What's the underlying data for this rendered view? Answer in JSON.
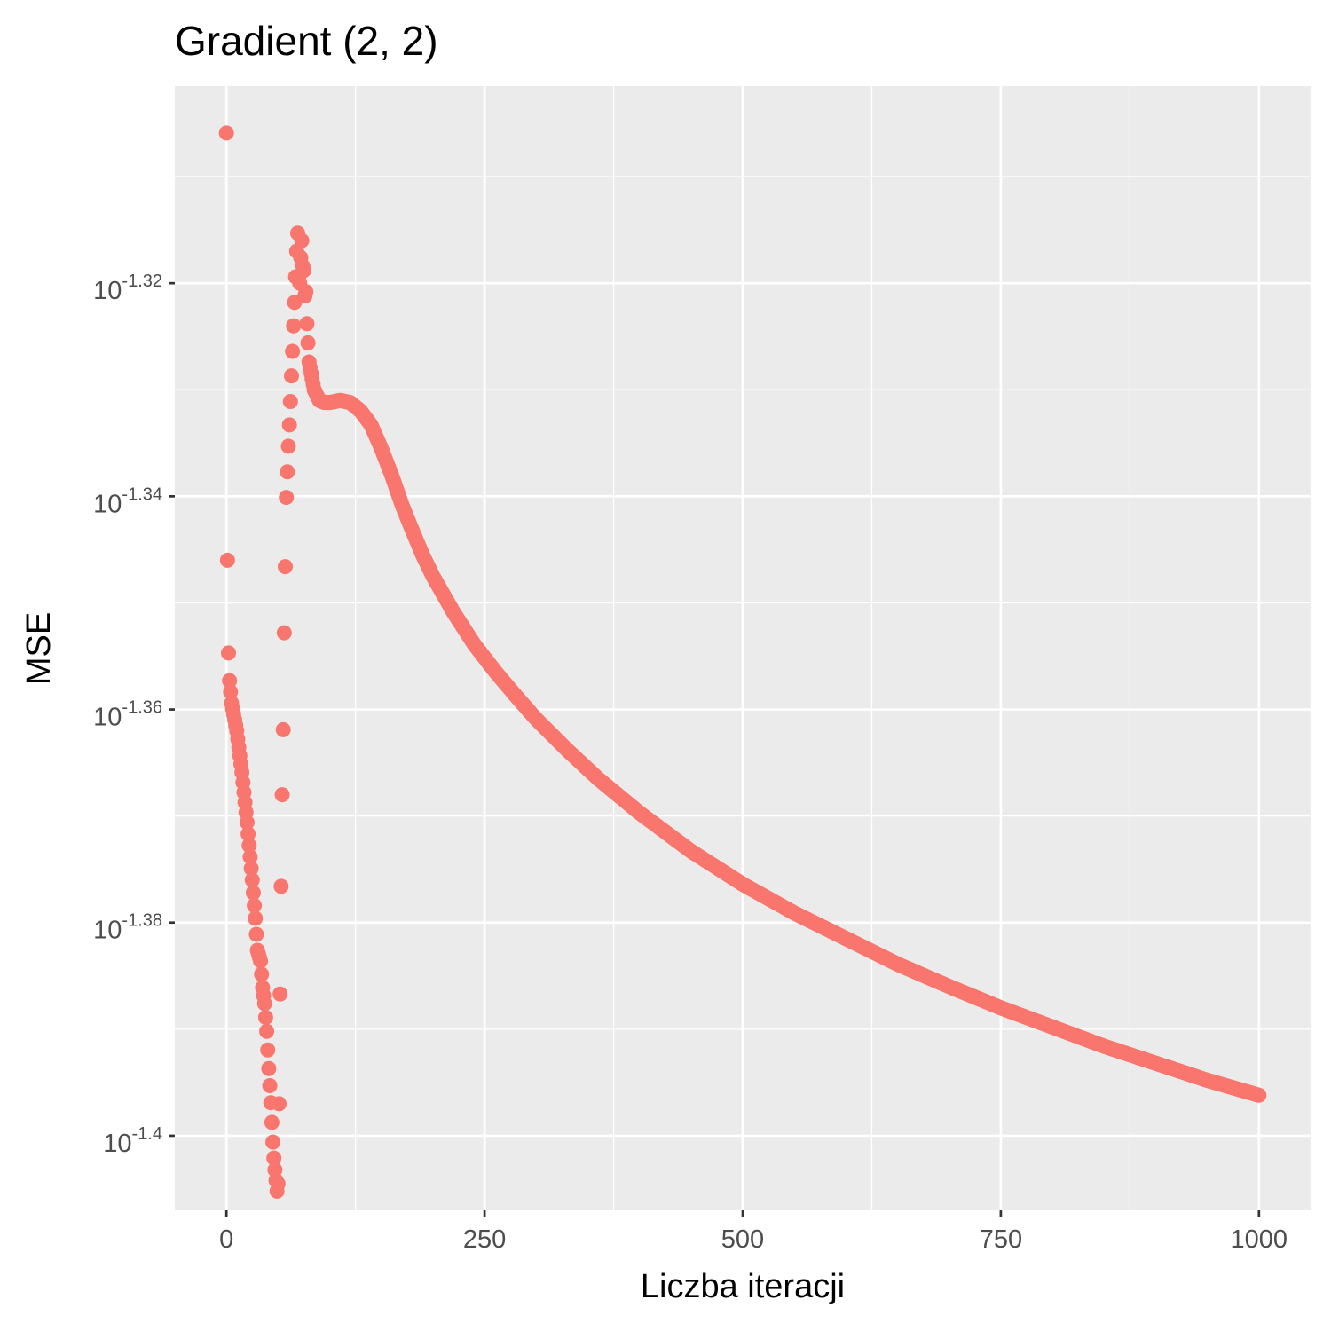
{
  "chart_data": {
    "type": "scatter",
    "title": "Gradient (2, 2)",
    "xlabel": "Liczba iteracji",
    "ylabel": "MSE",
    "xlim": [
      -50,
      1050
    ],
    "ylim_log10": [
      -1.407,
      -1.3015
    ],
    "y_scale": "log10",
    "x_ticks": [
      0,
      250,
      500,
      750,
      1000
    ],
    "x_tick_labels": [
      "0",
      "250",
      "500",
      "750",
      "1000"
    ],
    "y_ticks_log10": [
      -1.32,
      -1.34,
      -1.36,
      -1.38,
      -1.4
    ],
    "y_tick_labels": [
      {
        "base": "10",
        "exponent": "-1.32"
      },
      {
        "base": "10",
        "exponent": "-1.34"
      },
      {
        "base": "10",
        "exponent": "-1.36"
      },
      {
        "base": "10",
        "exponent": "-1.38"
      },
      {
        "base": "10",
        "exponent": "-1.4"
      }
    ],
    "grid": true,
    "legend": "none",
    "point_color": "#F8766D",
    "panel_color": "#EBEBEB",
    "series": [
      {
        "x": [
          0,
          1,
          2,
          3,
          5,
          10,
          15,
          20,
          25,
          28,
          30,
          33,
          35,
          37,
          39,
          41,
          43,
          45,
          46,
          47,
          48,
          49,
          50,
          51,
          52,
          53,
          54,
          55,
          56,
          57,
          58,
          59,
          60,
          61,
          62,
          63,
          64,
          65,
          66,
          67,
          68,
          69,
          70,
          71,
          72,
          73,
          74,
          75,
          76,
          77,
          78,
          80,
          85,
          90,
          95,
          100,
          110,
          120,
          130,
          140,
          150,
          160,
          170,
          180,
          190,
          200,
          220,
          240,
          260,
          280,
          300,
          330,
          360,
          400,
          450,
          500,
          550,
          600,
          650,
          700,
          750,
          800,
          850,
          900,
          950,
          1000
        ],
        "log10_y": [
          -1.3059,
          -1.346,
          -1.3547,
          -1.3573,
          -1.3594,
          -1.362,
          -1.3659,
          -1.3706,
          -1.376,
          -1.3796,
          -1.3826,
          -1.3836,
          -1.3861,
          -1.3876,
          -1.3902,
          -1.3937,
          -1.3969,
          -1.4006,
          -1.4021,
          -1.4032,
          -1.4042,
          -1.4052,
          -1.4045,
          -1.397,
          -1.3867,
          -1.3766,
          -1.368,
          -1.3619,
          -1.3528,
          -1.3466,
          -1.3401,
          -1.3377,
          -1.3353,
          -1.3333,
          -1.3311,
          -1.3287,
          -1.3264,
          -1.324,
          -1.3218,
          -1.3194,
          -1.317,
          -1.3153,
          -1.3196,
          -1.32,
          -1.3176,
          -1.316,
          -1.3184,
          -1.3188,
          -1.3212,
          -1.3208,
          -1.3238,
          -1.3274,
          -1.33,
          -1.331,
          -1.3312,
          -1.3312,
          -1.331,
          -1.3312,
          -1.332,
          -1.3333,
          -1.3355,
          -1.338,
          -1.3408,
          -1.3432,
          -1.3455,
          -1.3475,
          -1.3509,
          -1.3539,
          -1.3564,
          -1.3587,
          -1.3609,
          -1.3638,
          -1.3665,
          -1.3697,
          -1.3733,
          -1.3764,
          -1.3791,
          -1.3815,
          -1.3839,
          -1.386,
          -1.388,
          -1.3898,
          -1.3916,
          -1.3932,
          -1.3948,
          -1.3962
        ]
      }
    ]
  }
}
